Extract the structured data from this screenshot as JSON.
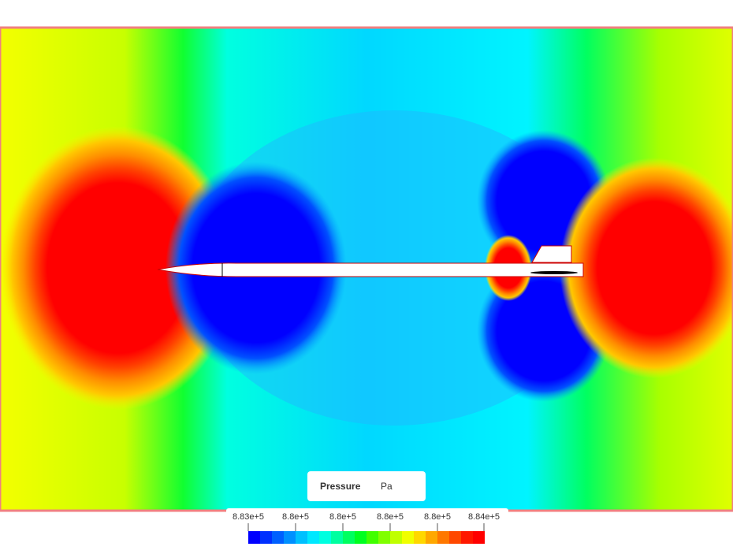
{
  "legend": {
    "title": "Pressure",
    "unit": "Pa",
    "ticks": [
      "8.83e+5",
      "8.8e+5",
      "8.8e+5",
      "8.8e+5",
      "8.8e+5",
      "8.84e+5"
    ]
  }
}
